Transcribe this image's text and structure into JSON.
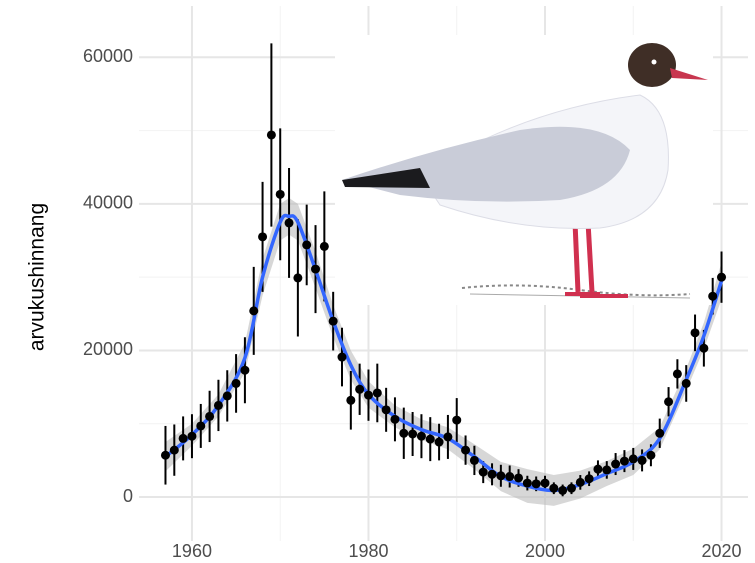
{
  "chart_data": {
    "type": "scatter",
    "y_label": "arvukushinnang",
    "xlim": [
      1954,
      2023
    ],
    "ylim": [
      -6000,
      67000
    ],
    "xticks": [
      1960,
      1980,
      2000,
      2020
    ],
    "yticks": [
      0,
      20000,
      40000,
      60000
    ],
    "x_minor_grid": [
      1970,
      1990,
      2010
    ],
    "y_minor_grid": [
      10000,
      30000,
      50000
    ],
    "grid": true,
    "points": {
      "color": "#000000",
      "x": [
        1957,
        1958,
        1959,
        1960,
        1961,
        1962,
        1963,
        1964,
        1965,
        1966,
        1967,
        1968,
        1969,
        1970,
        1971,
        1972,
        1973,
        1974,
        1975,
        1976,
        1977,
        1978,
        1979,
        1980,
        1981,
        1982,
        1983,
        1984,
        1985,
        1986,
        1987,
        1988,
        1989,
        1990,
        1991,
        1992,
        1993,
        1994,
        1995,
        1996,
        1997,
        1998,
        1999,
        2000,
        2001,
        2002,
        2003,
        2004,
        2005,
        2006,
        2007,
        2008,
        2009,
        2010,
        2011,
        2012,
        2013,
        2014,
        2015,
        2016,
        2017,
        2018,
        2019,
        2020
      ],
      "values": [
        5700,
        6400,
        8000,
        8300,
        9700,
        11000,
        12500,
        13800,
        15500,
        17300,
        25400,
        35500,
        49400,
        41300,
        37400,
        29900,
        34400,
        31100,
        34200,
        24000,
        19100,
        13200,
        14700,
        13900,
        14200,
        11900,
        10600,
        8700,
        8600,
        8300,
        7900,
        7500,
        8200,
        10500,
        6400,
        5000,
        3400,
        3100,
        2900,
        2800,
        2600,
        1900,
        1800,
        1900,
        1200,
        900,
        1200,
        2000,
        2500,
        3800,
        3700,
        4500,
        4900,
        5200,
        5000,
        5700,
        8700,
        13000,
        16800,
        15500,
        22400,
        20300,
        27400,
        30000
      ],
      "errors": [
        4000,
        3500,
        3000,
        3000,
        3000,
        3500,
        3500,
        3500,
        4000,
        4500,
        6000,
        7500,
        12500,
        9000,
        7500,
        8000,
        5500,
        6000,
        7500,
        4000,
        4000,
        4000,
        3500,
        3500,
        4000,
        3000,
        3000,
        3500,
        3000,
        3000,
        3000,
        2500,
        3000,
        3000,
        2000,
        2000,
        1500,
        1500,
        1500,
        1500,
        1200,
        1000,
        1000,
        1000,
        800,
        800,
        800,
        1000,
        1000,
        1200,
        1200,
        1500,
        1500,
        1500,
        1500,
        1500,
        2000,
        2000,
        2000,
        2500,
        2500,
        2500,
        2500,
        3500
      ]
    },
    "smooth": {
      "color": "#3366ff",
      "band_color": "#bdbdbd",
      "x": [
        1957,
        1960,
        1963,
        1966,
        1968,
        1970,
        1971,
        1972,
        1974,
        1976,
        1978,
        1980,
        1983,
        1986,
        1989,
        1992,
        1995,
        1998,
        2001,
        2004,
        2007,
        2010,
        2013,
        2016,
        2018,
        2020
      ],
      "values": [
        5500,
        8500,
        12500,
        19000,
        30000,
        37500,
        38300,
        37500,
        31000,
        24000,
        18000,
        14000,
        11000,
        9200,
        8000,
        5500,
        2800,
        1500,
        900,
        1700,
        3200,
        4800,
        8000,
        16000,
        22000,
        29500
      ],
      "lower": [
        3500,
        7000,
        11000,
        17000,
        27500,
        35000,
        35800,
        35000,
        28500,
        21800,
        16000,
        12200,
        9500,
        7800,
        6500,
        3800,
        800,
        -800,
        -1200,
        -200,
        1500,
        3000,
        6500,
        14500,
        20200,
        27000
      ],
      "upper": [
        7500,
        10000,
        14000,
        21000,
        32500,
        40000,
        40800,
        40000,
        33500,
        26200,
        20000,
        15800,
        12500,
        10600,
        9500,
        7200,
        4800,
        3800,
        3000,
        3600,
        4900,
        6600,
        9500,
        17500,
        23800,
        32000
      ]
    }
  }
}
